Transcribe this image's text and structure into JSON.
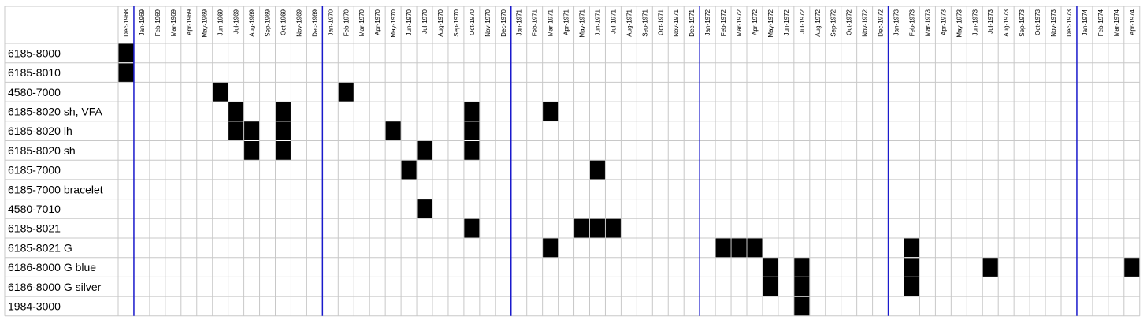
{
  "chart_data": {
    "type": "heatmap",
    "title": "",
    "xlabel": "",
    "ylabel": "",
    "months": [
      "Dec-1968",
      "Jan-1969",
      "Feb-1969",
      "Mar-1969",
      "Apr-1969",
      "May-1969",
      "Jun-1969",
      "Jul-1969",
      "Aug-1969",
      "Sep-1969",
      "Oct-1969",
      "Nov-1969",
      "Dec-1969",
      "Jan-1970",
      "Feb-1970",
      "Mar-1970",
      "Apr-1970",
      "May-1970",
      "Jun-1970",
      "Jul-1970",
      "Aug-1970",
      "Sep-1970",
      "Oct-1970",
      "Nov-1970",
      "Dec-1970",
      "Jan-1971",
      "Feb-1971",
      "Mar-1971",
      "Apr-1971",
      "May-1971",
      "Jun-1971",
      "Jul-1971",
      "Aug-1971",
      "Sep-1971",
      "Oct-1971",
      "Nov-1971",
      "Dec-1971",
      "Jan-1972",
      "Feb-1972",
      "Mar-1972",
      "Apr-1972",
      "May-1972",
      "Jun-1972",
      "Jul-1972",
      "Aug-1972",
      "Sep-1972",
      "Oct-1972",
      "Nov-1972",
      "Dec-1972",
      "Jan-1973",
      "Feb-1973",
      "Mar-1973",
      "Apr-1973",
      "May-1973",
      "Jun-1973",
      "Jul-1973",
      "Aug-1973",
      "Sep-1973",
      "Oct-1973",
      "Nov-1973",
      "Dec-1973",
      "Jan-1974",
      "Feb-1974",
      "Mar-1974",
      "Apr-1974"
    ],
    "rows": [
      {
        "label": "6185-8000",
        "active": [
          "Dec-1968"
        ]
      },
      {
        "label": "6185-8010",
        "active": [
          "Dec-1968"
        ]
      },
      {
        "label": "4580-7000",
        "active": [
          "Jun-1969",
          "Feb-1970"
        ]
      },
      {
        "label": "6185-8020 sh, VFA",
        "active": [
          "Jul-1969",
          "Oct-1969",
          "Oct-1970",
          "Mar-1971"
        ]
      },
      {
        "label": "6185-8020 lh",
        "active": [
          "Jul-1969",
          "Aug-1969",
          "Oct-1969",
          "May-1970",
          "Oct-1970"
        ]
      },
      {
        "label": "6185-8020 sh",
        "active": [
          "Aug-1969",
          "Oct-1969",
          "Jul-1970",
          "Oct-1970"
        ]
      },
      {
        "label": "6185-7000",
        "active": [
          "Jun-1970",
          "Jun-1971"
        ]
      },
      {
        "label": "6185-7000 bracelet",
        "active": []
      },
      {
        "label": "4580-7010",
        "active": [
          "Jul-1970"
        ]
      },
      {
        "label": "6185-8021",
        "active": [
          "Oct-1970",
          "May-1971",
          "Jun-1971",
          "Jul-1971"
        ]
      },
      {
        "label": "6185-8021 G",
        "active": [
          "Mar-1971",
          "Feb-1972",
          "Mar-1972",
          "Apr-1972",
          "Feb-1973"
        ]
      },
      {
        "label": "6186-8000 G blue",
        "active": [
          "May-1972",
          "Jul-1972",
          "Feb-1973",
          "Jul-1973",
          "Apr-1974"
        ]
      },
      {
        "label": "6186-8000 G silver",
        "active": [
          "May-1972",
          "Jul-1972",
          "Feb-1973"
        ]
      },
      {
        "label": "1984-3000",
        "active": [
          "Jul-1972"
        ]
      }
    ],
    "cell_color": "#000000",
    "year_divider_color": "#1a1acc",
    "grid_color": "#c8c8c8",
    "grid": true,
    "legend": "none"
  }
}
